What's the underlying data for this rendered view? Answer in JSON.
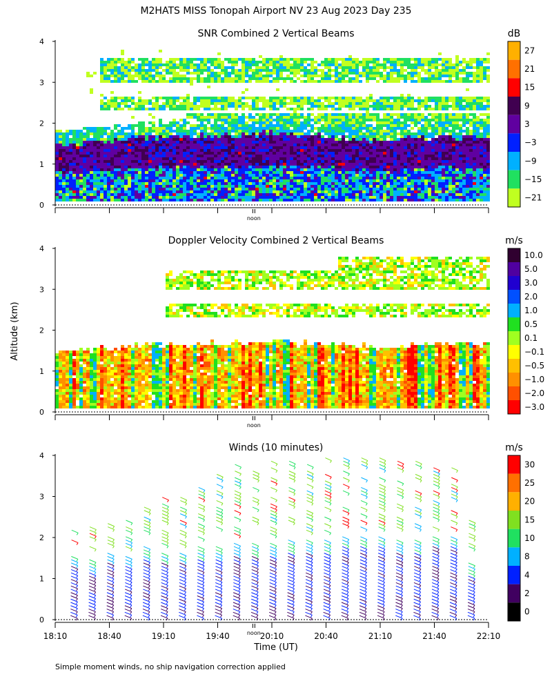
{
  "title": "M2HATS MISS Tonopah Airport NV  23 Aug 2023 Day 235",
  "footnote": "Simple moment winds, no ship navigation correction applied",
  "ylabel": "Altitude (km)",
  "xlabel": "Time (UT)",
  "noon_label": "noon",
  "x_ticks": [
    "18:10",
    "18:40",
    "19:10",
    "19:40",
    "20:10",
    "20:40",
    "21:10",
    "21:40",
    "22:10"
  ],
  "y_ticks": [
    "0",
    "1",
    "2",
    "3",
    "4"
  ],
  "panels": [
    {
      "id": "snr",
      "title": "SNR Combined 2 Vertical Beams",
      "unit": "dB",
      "colorbar": {
        "labels": [
          "27",
          "21",
          "15",
          "9",
          "3",
          "−3",
          "−9",
          "−15",
          "−21"
        ],
        "colors": [
          "#ffb000",
          "#ff7000",
          "#ff0000",
          "#400050",
          "#6000a0",
          "#0020ff",
          "#00b0ff",
          "#20e060",
          "#c0ff20"
        ]
      }
    },
    {
      "id": "vel",
      "title": "Doppler Velocity Combined 2 Vertical Beams",
      "unit": "m/s",
      "colorbar": {
        "labels": [
          "10.0",
          "5.0",
          "3.0",
          "2.0",
          "1.0",
          "0.5",
          "0.1",
          "−0.1",
          "−0.5",
          "−1.0",
          "−2.0",
          "−3.0"
        ],
        "colors": [
          "#300030",
          "#5000a0",
          "#2000d0",
          "#0050ff",
          "#00b0ff",
          "#20e020",
          "#a0ff20",
          "#ffff00",
          "#ffc000",
          "#ff9000",
          "#ff5000",
          "#ff0000"
        ]
      }
    },
    {
      "id": "wind",
      "title": "Winds (10 minutes)",
      "unit": "m/s",
      "colorbar": {
        "labels": [
          "30",
          "25",
          "20",
          "15",
          "10",
          "8",
          "4",
          "2",
          "0"
        ],
        "colors": [
          "#ff0000",
          "#ff7000",
          "#ffb000",
          "#80e020",
          "#20e060",
          "#00b0ff",
          "#0020ff",
          "#400060",
          "#000000"
        ]
      }
    }
  ],
  "chart_data": [
    {
      "type": "heatmap",
      "title": "SNR Combined 2 Vertical Beams",
      "unit": "dB",
      "xlabel": "Time (UT)",
      "ylabel": "Altitude (km)",
      "x_range": [
        "18:10",
        "22:10"
      ],
      "ylim": [
        0,
        4
      ],
      "layers": [
        {
          "description": "boundary layer high SNR (3 to 15 dB)",
          "top_km": [
            1.5,
            1.6,
            1.7,
            1.7,
            1.8,
            1.7,
            1.6,
            1.7,
            1.7
          ]
        },
        {
          "description": "upper cloud layer low SNR (-21 to -9 dB)",
          "base_km": 1.9,
          "top_km": 3.8
        }
      ]
    },
    {
      "type": "heatmap",
      "title": "Doppler Velocity Combined 2 Vertical Beams",
      "unit": "m/s",
      "xlabel": "Time (UT)",
      "ylabel": "Altitude (km)",
      "x_range": [
        "18:10",
        "22:10"
      ],
      "ylim": [
        0,
        4
      ],
      "dominant_range_ms": [
        -3.0,
        0.5
      ]
    },
    {
      "type": "scatter",
      "title": "Winds (10 minutes)",
      "unit": "m/s",
      "xlabel": "Time (UT)",
      "ylabel": "Altitude (km)",
      "x_range": [
        "18:10",
        "22:10"
      ],
      "ylim": [
        0,
        4
      ],
      "profile_times": [
        "18:20",
        "18:30",
        "18:40",
        "18:50",
        "19:00",
        "19:10",
        "19:20",
        "19:30",
        "19:40",
        "19:50",
        "20:00",
        "20:10",
        "20:20",
        "20:30",
        "20:40",
        "20:50",
        "21:00",
        "21:10",
        "21:20",
        "21:30",
        "21:40",
        "21:50",
        "22:00"
      ],
      "lower_layer_top_km": [
        1.6,
        1.5,
        1.7,
        1.6,
        1.8,
        1.7,
        1.7,
        1.8,
        1.8,
        1.9,
        1.9,
        1.9,
        2.0,
        2.0,
        2.0,
        2.1,
        2.1,
        2.1,
        2.0,
        2.0,
        2.1,
        2.1,
        1.4
      ],
      "upper_layer_top_km": [
        2.2,
        2.3,
        2.4,
        2.5,
        2.8,
        3.0,
        3.1,
        3.3,
        3.6,
        3.8,
        3.7,
        3.9,
        3.9,
        3.9,
        4.0,
        4.0,
        4.0,
        4.0,
        3.9,
        3.9,
        3.8,
        3.8,
        2.5
      ],
      "speed_colorbar_ms": [
        0,
        2,
        4,
        8,
        10,
        15,
        20,
        25,
        30
      ]
    }
  ]
}
